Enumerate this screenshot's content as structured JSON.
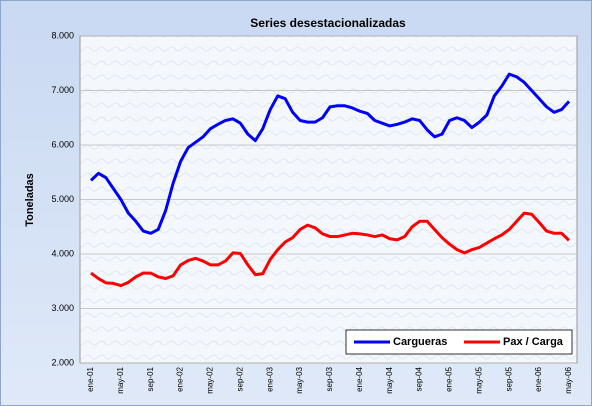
{
  "chart_data": {
    "type": "line",
    "title": "Series desestacionalizadas",
    "y_label": "Toneladas",
    "categories": [
      "ene-01",
      null,
      null,
      null,
      "may-01",
      null,
      null,
      null,
      "sep-01",
      null,
      null,
      null,
      "ene-02",
      null,
      null,
      null,
      "may-02",
      null,
      null,
      null,
      "sep-02",
      null,
      null,
      null,
      "ene-03",
      null,
      null,
      null,
      "may-03",
      null,
      null,
      null,
      "sep-03",
      null,
      null,
      null,
      "ene-04",
      null,
      null,
      null,
      "may-04",
      null,
      null,
      null,
      "sep-04",
      null,
      null,
      null,
      "ene-05",
      null,
      null,
      null,
      "may-05",
      null,
      null,
      null,
      "sep-05",
      null,
      null,
      null,
      "ene-06",
      null,
      null,
      null,
      "may-06"
    ],
    "series": [
      {
        "name": "Cargueras",
        "color": "#0000ff",
        "values": [
          5350,
          5480,
          5400,
          5200,
          5000,
          4750,
          4600,
          4420,
          4380,
          4450,
          4800,
          5300,
          5700,
          5950,
          6050,
          6150,
          6300,
          6380,
          6450,
          6480,
          6400,
          6200,
          6080,
          6300,
          6650,
          6900,
          6850,
          6600,
          6450,
          6420,
          6420,
          6500,
          6700,
          6720,
          6720,
          6680,
          6620,
          6580,
          6450,
          6400,
          6350,
          6380,
          6420,
          6480,
          6450,
          6280,
          6150,
          6200,
          6450,
          6500,
          6450,
          6320,
          6420,
          6550,
          6900,
          7080,
          7300,
          7250,
          7150,
          7000,
          6850,
          6700,
          6600,
          6650,
          6800
        ]
      },
      {
        "name": "Pax / Carga",
        "color": "#ff0000",
        "values": [
          3650,
          3550,
          3470,
          3460,
          3420,
          3480,
          3580,
          3650,
          3650,
          3580,
          3550,
          3600,
          3800,
          3880,
          3920,
          3870,
          3800,
          3800,
          3870,
          4020,
          4010,
          3800,
          3620,
          3640,
          3900,
          4080,
          4220,
          4300,
          4450,
          4530,
          4480,
          4370,
          4320,
          4320,
          4350,
          4380,
          4370,
          4350,
          4320,
          4350,
          4280,
          4260,
          4320,
          4500,
          4600,
          4600,
          4450,
          4300,
          4180,
          4080,
          4020,
          4080,
          4120,
          4200,
          4280,
          4350,
          4450,
          4600,
          4750,
          4730,
          4580,
          4420,
          4380,
          4380,
          4250
        ]
      }
    ],
    "ylim": [
      2000,
      8000
    ],
    "yticks": [
      {
        "value": 2000,
        "label": "2.000"
      },
      {
        "value": 3000,
        "label": "3.000"
      },
      {
        "value": 4000,
        "label": "4.000"
      },
      {
        "value": 5000,
        "label": "5.000"
      },
      {
        "value": 6000,
        "label": "6.000"
      },
      {
        "value": 7000,
        "label": "7.000"
      },
      {
        "value": 8000,
        "label": "8.000"
      }
    ],
    "grid": true,
    "legend": "lower right"
  }
}
